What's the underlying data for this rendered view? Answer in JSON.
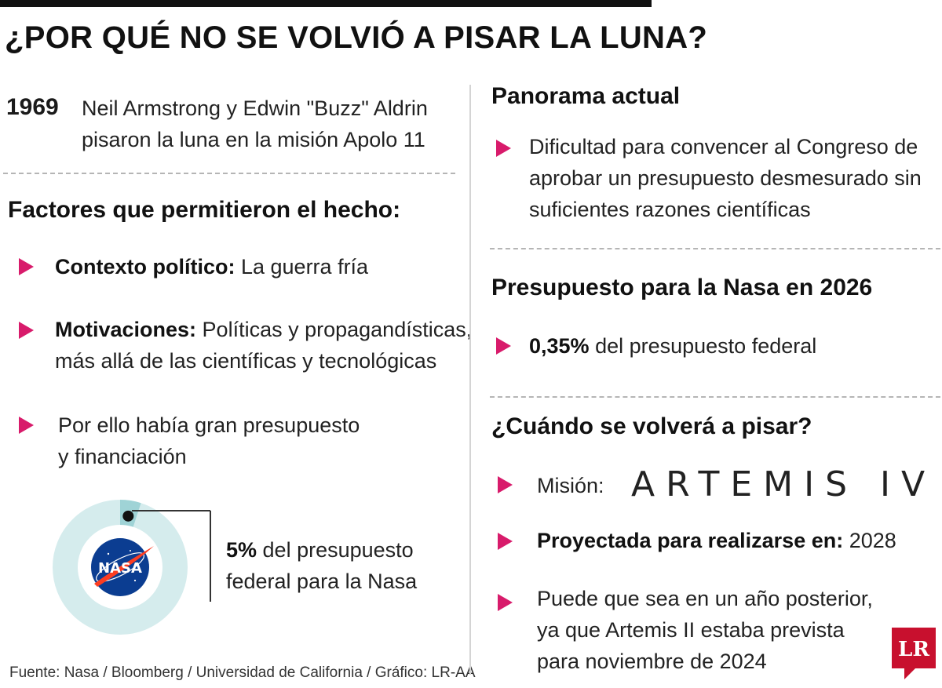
{
  "title": "¿POR QUÉ NO SE VOLVIÓ A PISAR LA LUNA?",
  "intro": {
    "year": "1969",
    "line1": "Neil Armstrong y Edwin \"Buzz\" Aldrin",
    "line2": "pisaron la luna en la misión Apolo 11"
  },
  "factors": {
    "heading": "Factores que permitieron el hecho:",
    "items": [
      {
        "label": "Contexto político:",
        "line1": " La guerra fría"
      },
      {
        "label": "Motivaciones:",
        "line1": " Políticas y propagandísticas,",
        "line2": "más allá de las científicas y tecnológicas"
      },
      {
        "line1": "Por ello había gran presupuesto",
        "line2": "y financiación"
      }
    ]
  },
  "nasa_budget": {
    "value": "5%",
    "line1": " del presupuesto",
    "line2": "federal para la Nasa",
    "fraction": 0.05,
    "logo_text": "NASA"
  },
  "panorama": {
    "heading": "Panorama actual",
    "line1": "Dificultad para convencer al Congreso de",
    "line2": "aprobar un presupuesto desmesurado sin",
    "line3": "suficientes razones científicas"
  },
  "budget_2026": {
    "heading": "Presupuesto para la Nasa en 2026",
    "value": "0,35%",
    "text": " del presupuesto federal"
  },
  "when": {
    "heading": "¿Cuándo se volverá a pisar?",
    "mission_label": "Misión:",
    "mission_name": "ARTEMIS IV",
    "projected_label": "Proyectada para realizarse en:",
    "projected_year": " 2028",
    "note_line1": "Puede que sea en un año posterior,",
    "note_line2": "ya que Artemis II estaba prevista",
    "note_line3": "para noviembre de 2024"
  },
  "source": "Fuente: Nasa / Bloomberg / Universidad de California / Gráfico: LR-AA",
  "logo_text": "LR",
  "colors": {
    "accent": "#d81b6b",
    "donut_ring": "#d5eced",
    "donut_slice": "#9fd3d6",
    "nasa_blue": "#0b3d91",
    "nasa_red": "#fc3d21",
    "logo_red": "#c8102e"
  }
}
